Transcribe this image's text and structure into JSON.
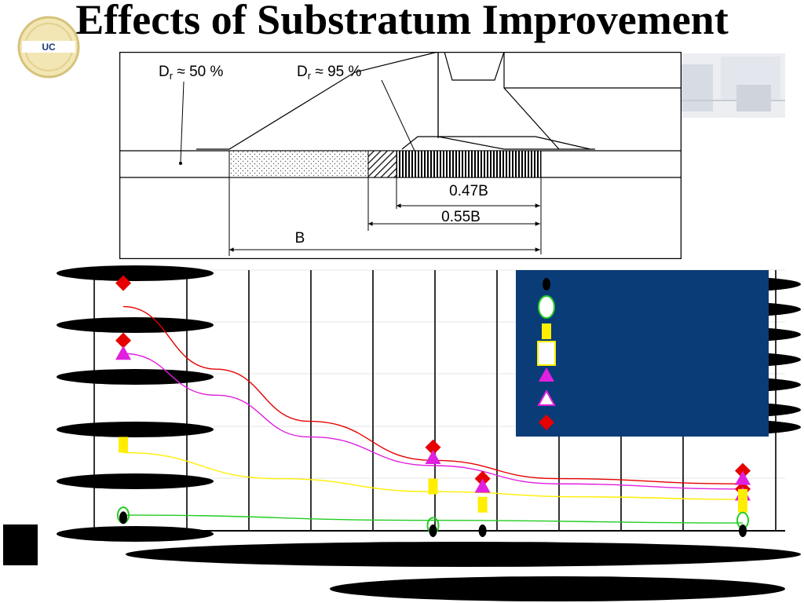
{
  "slide": {
    "title": "Effects of Substratum Improvement"
  },
  "logo": {
    "text": "UCDAVIS"
  },
  "schematic": {
    "label_dr50": "D",
    "label_dr50_sub": "r",
    "label_dr50_val": " ≈ 50 %",
    "label_dr95": "D",
    "label_dr95_sub": "r",
    "label_dr95_val": " ≈ 95 %",
    "dim_047": "0.47B",
    "dim_055": "0.55B",
    "dim_b": "B"
  },
  "colors": {
    "legend_bg": "#0a3c78",
    "red": "#e60000",
    "magenta": "#e020e0",
    "yellow": "#ffee00",
    "green": "#22cc22",
    "black": "#000000"
  },
  "chart_data": {
    "type": "scatter",
    "xlim": [
      0,
      1
    ],
    "ylim": [
      0,
      1
    ],
    "grid": true,
    "legend_placement": "top-right",
    "series": [
      {
        "color": "red",
        "marker": "diamond",
        "points": [
          [
            0.0,
            0.95
          ],
          [
            0.0,
            0.73
          ],
          [
            0.5,
            0.32
          ],
          [
            0.58,
            0.2
          ],
          [
            1.0,
            0.23
          ],
          [
            1.0,
            0.16
          ]
        ],
        "curve": [
          [
            0.0,
            0.86
          ],
          [
            0.15,
            0.62
          ],
          [
            0.3,
            0.42
          ],
          [
            0.5,
            0.27
          ],
          [
            0.7,
            0.2
          ],
          [
            1.0,
            0.18
          ]
        ]
      },
      {
        "color": "magenta",
        "marker": "triangle",
        "points": [
          [
            0.0,
            0.68
          ],
          [
            0.5,
            0.28
          ],
          [
            0.58,
            0.17
          ],
          [
            1.0,
            0.2
          ],
          [
            1.0,
            0.14
          ]
        ],
        "curve": [
          [
            0.0,
            0.68
          ],
          [
            0.15,
            0.52
          ],
          [
            0.3,
            0.36
          ],
          [
            0.5,
            0.25
          ],
          [
            0.7,
            0.18
          ],
          [
            1.0,
            0.16
          ]
        ]
      },
      {
        "color": "yellow",
        "marker": "square",
        "points": [
          [
            0.0,
            0.33
          ],
          [
            0.5,
            0.17
          ],
          [
            0.58,
            0.1
          ],
          [
            1.0,
            0.13
          ],
          [
            1.0,
            0.1
          ]
        ],
        "curve": [
          [
            0.0,
            0.3
          ],
          [
            0.25,
            0.2
          ],
          [
            0.5,
            0.15
          ],
          [
            0.75,
            0.13
          ],
          [
            1.0,
            0.12
          ]
        ]
      },
      {
        "color": "green",
        "marker": "circle-open",
        "points": [
          [
            0.0,
            0.06
          ],
          [
            0.5,
            0.02
          ],
          [
            1.0,
            0.04
          ]
        ],
        "curve": [
          [
            0.0,
            0.06
          ],
          [
            0.5,
            0.04
          ],
          [
            1.0,
            0.03
          ]
        ]
      },
      {
        "color": "black",
        "marker": "circle",
        "points": [
          [
            0.0,
            0.05
          ],
          [
            0.5,
            0.0
          ],
          [
            0.58,
            0.0
          ],
          [
            1.0,
            0.0
          ]
        ],
        "curve": []
      }
    ],
    "legend_markers": [
      "circle",
      "circle-open",
      "square",
      "square-open",
      "triangle",
      "triangle-open",
      "diamond"
    ]
  }
}
